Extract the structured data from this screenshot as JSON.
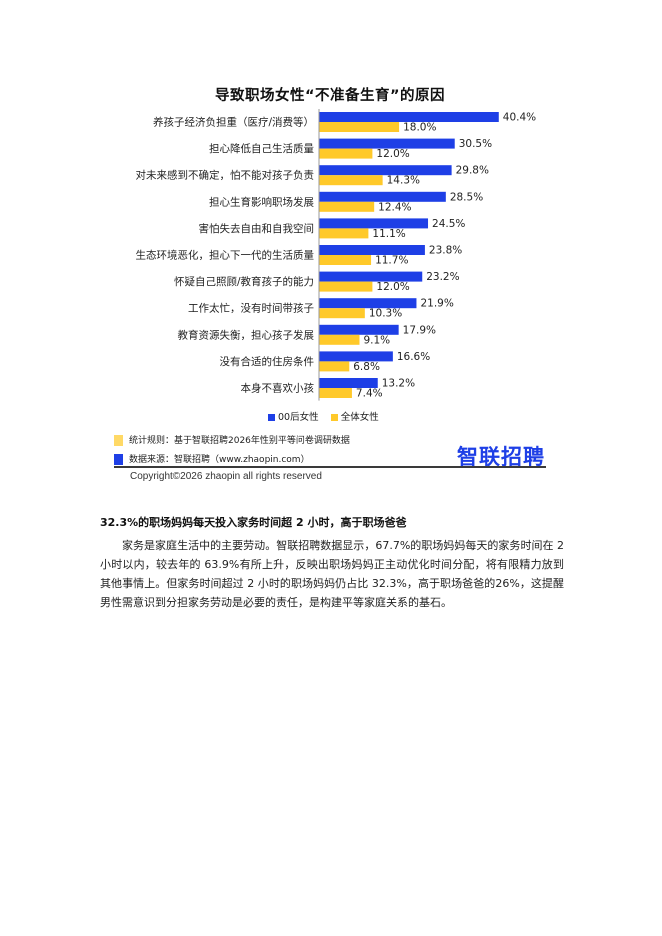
{
  "chart_data": {
    "type": "bar",
    "title": "导致职场女性“不准备生育”的原因",
    "categories": [
      "养孩子经济负担重（医疗/消费等）",
      "担心降低自己生活质量",
      "对未来感到不确定，怕不能对孩子负责",
      "担心生育影响职场发展",
      "害怕失去自由和自我空间",
      "生态环境恶化，担心下一代的生活质量",
      "怀疑自己照顾/教育孩子的能力",
      "工作太忙，没有时间带孩子",
      "教育资源失衡，担心孩子发展",
      "没有合适的住房条件",
      "本身不喜欢小孩"
    ],
    "series": [
      {
        "name": "00后女性",
        "color": "#1e3fe6",
        "values": [
          40.4,
          30.5,
          29.8,
          28.5,
          24.5,
          23.8,
          23.2,
          21.9,
          17.9,
          16.6,
          13.2
        ],
        "labels": [
          "40.4%",
          "30.5%",
          "29.8%",
          "28.5%",
          "24.5%",
          "23.8%",
          "23.2%",
          "21.9%",
          "17.9%",
          "16.6%",
          "13.2%"
        ]
      },
      {
        "name": "全体女性",
        "color": "#ffc92a",
        "values": [
          18.0,
          12.0,
          14.3,
          12.4,
          11.1,
          11.7,
          12.0,
          10.3,
          9.1,
          6.8,
          7.4
        ],
        "labels": [
          "18.0%",
          "12.0%",
          "14.3%",
          "12.4%",
          "11.1%",
          "11.7%",
          "12.0%",
          "10.3%",
          "9.1%",
          "6.8%",
          "7.4%"
        ]
      }
    ],
    "orientation": "horizontal",
    "legend_position": "bottom",
    "grid": false
  },
  "footer": {
    "rule_text": "统计规则：基于智联招聘2026年性别平等问卷调研数据",
    "rule_color": "#ffd966",
    "source_text": "数据来源：智联招聘（www.zhaopin.com）",
    "source_color": "#1e3fe6",
    "brand": "智联招聘",
    "copyright": "Copyright©2026 zhaopin all rights reserved"
  },
  "article": {
    "heading": "32.3%的职场妈妈每天投入家务时间超 2 小时，高于职场爸爸",
    "paragraph": "家务是家庭生活中的主要劳动。智联招聘数据显示，67.7%的职场妈妈每天的家务时间在 2 小时以内，较去年的 63.9%有所上升，反映出职场妈妈正主动优化时间分配，将有限精力放到其他事情上。但家务时间超过 2 小时的职场妈妈仍占比 32.3%，高于职场爸爸的26%，这提醒男性需意识到分担家务劳动是必要的责任，是构建平等家庭关系的基石。"
  }
}
